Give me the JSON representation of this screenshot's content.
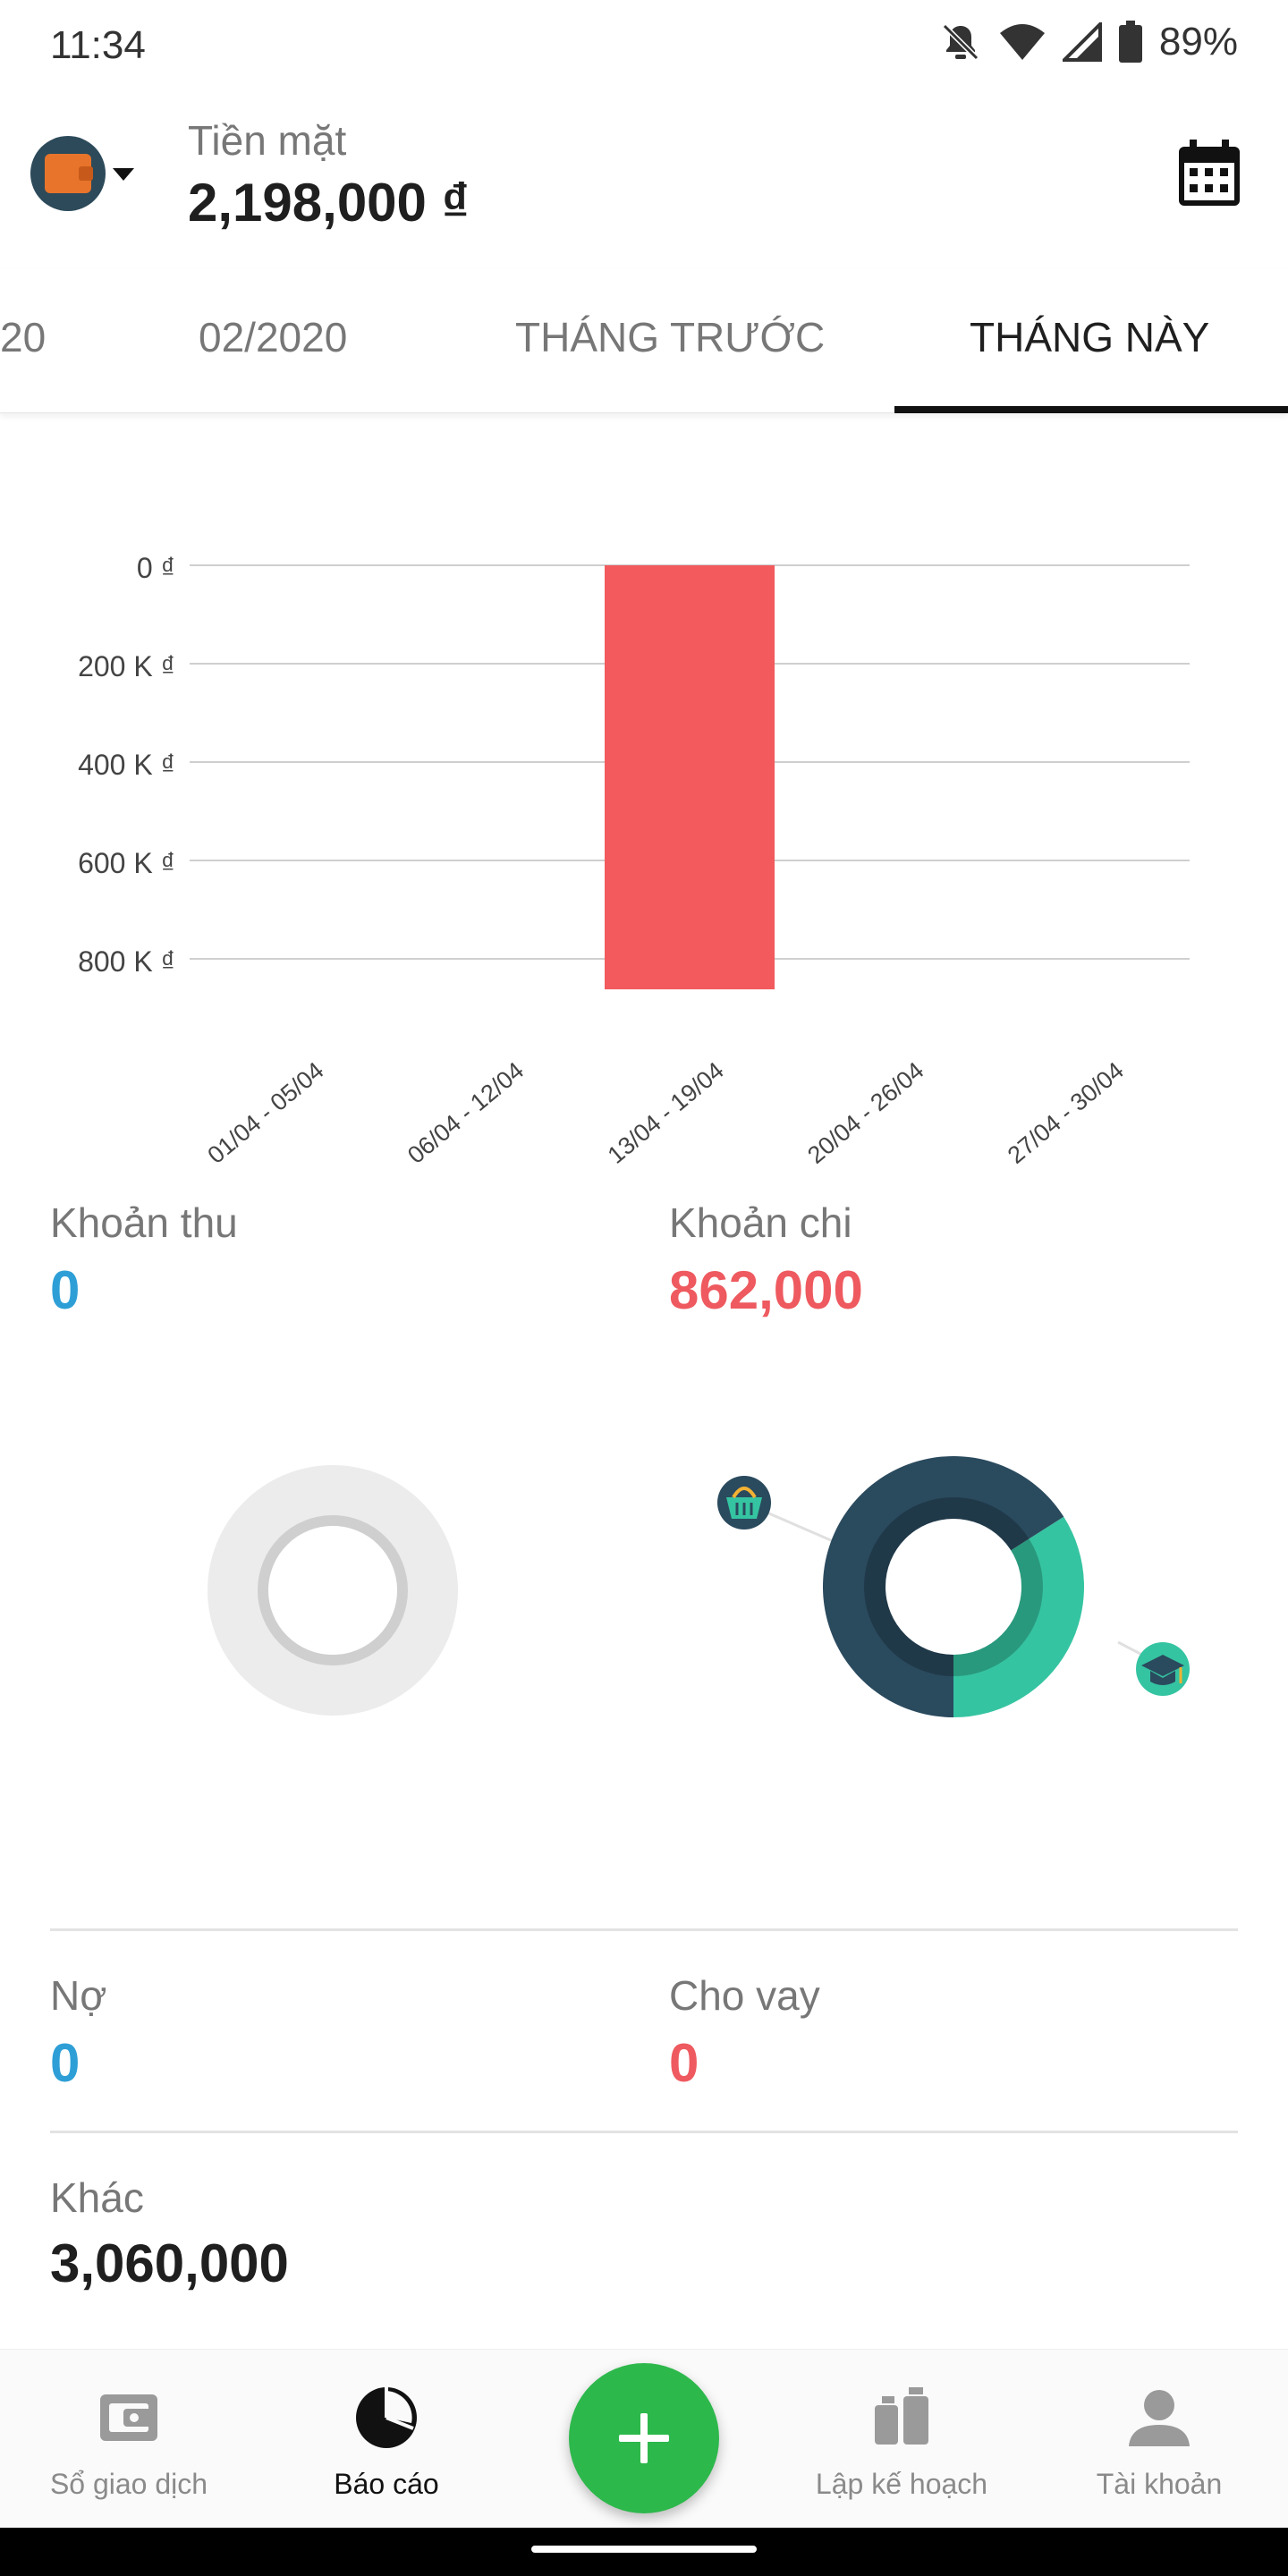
{
  "status_bar": {
    "time": "11:34",
    "battery": "89%"
  },
  "header": {
    "wallet_name": "Tiền mặt",
    "wallet_balance": "2,198,000 ₫"
  },
  "tabs": [
    {
      "label": "20"
    },
    {
      "label": "02/2020"
    },
    {
      "label": "THÁNG TRƯỚC"
    },
    {
      "label": "THÁNG NÀY",
      "active": true
    }
  ],
  "chart_data": {
    "type": "bar",
    "categories": [
      "01/04 - 05/04",
      "06/04 - 12/04",
      "13/04 - 19/04",
      "20/04 - 26/04",
      "27/04 - 30/04"
    ],
    "values": [
      0,
      0,
      -862000,
      0,
      0
    ],
    "tick_labels": [
      "0 ₫",
      "200 K ₫",
      "400 K ₫",
      "600 K ₫",
      "800 K ₫"
    ],
    "ylim": [
      -862000,
      0
    ],
    "grid": true,
    "bar_color": "#f25a5d"
  },
  "summary": {
    "income_label": "Khoản thu",
    "income_value": "0",
    "expense_label": "Khoản chi",
    "expense_value": "862,000",
    "debt_label": "Nợ",
    "debt_value": "0",
    "loan_label": "Cho vay",
    "loan_value": "0",
    "other_label": "Khác",
    "other_value": "3,060,000"
  },
  "expense_breakdown": [
    {
      "category_icon": "shopping-basket-icon",
      "fraction": 0.34,
      "color": "#35c4a1"
    },
    {
      "category_icon": "graduation-cap-icon",
      "fraction": 0.66,
      "color": "#2a4a5e"
    }
  ],
  "bottom_nav": [
    {
      "label": "Sổ giao dịch",
      "icon": "wallet-icon"
    },
    {
      "label": "Báo cáo",
      "icon": "pie-chart-icon",
      "active": true
    },
    {
      "label": "Lập kế hoạch",
      "icon": "planning-icon"
    },
    {
      "label": "Tài khoản",
      "icon": "person-icon"
    }
  ]
}
